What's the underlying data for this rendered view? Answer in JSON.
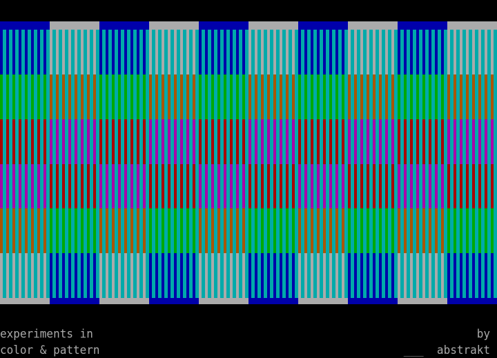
{
  "caption": {
    "left_line1": "experiments in",
    "left_line2": "color & pattern",
    "right_line1": "by",
    "right_line2": "___  abstrakt"
  },
  "palette": {
    "blue": "#0000AA",
    "gray": "#AAAAAA",
    "green": "#00AA00",
    "orange": "#AA5500",
    "red": "#AA0000",
    "magenta": "#AA00AA",
    "cyan": "#00AAAA",
    "background": "#000000"
  },
  "pattern": {
    "columns": 10,
    "stripe_color": "cyan",
    "even_column_rows": [
      "blue",
      "blue",
      "green",
      "red",
      "magenta",
      "orange",
      "gray",
      "gray"
    ],
    "odd_column_rows": [
      "gray",
      "gray",
      "orange",
      "magenta",
      "red",
      "green",
      "blue",
      "blue"
    ]
  }
}
